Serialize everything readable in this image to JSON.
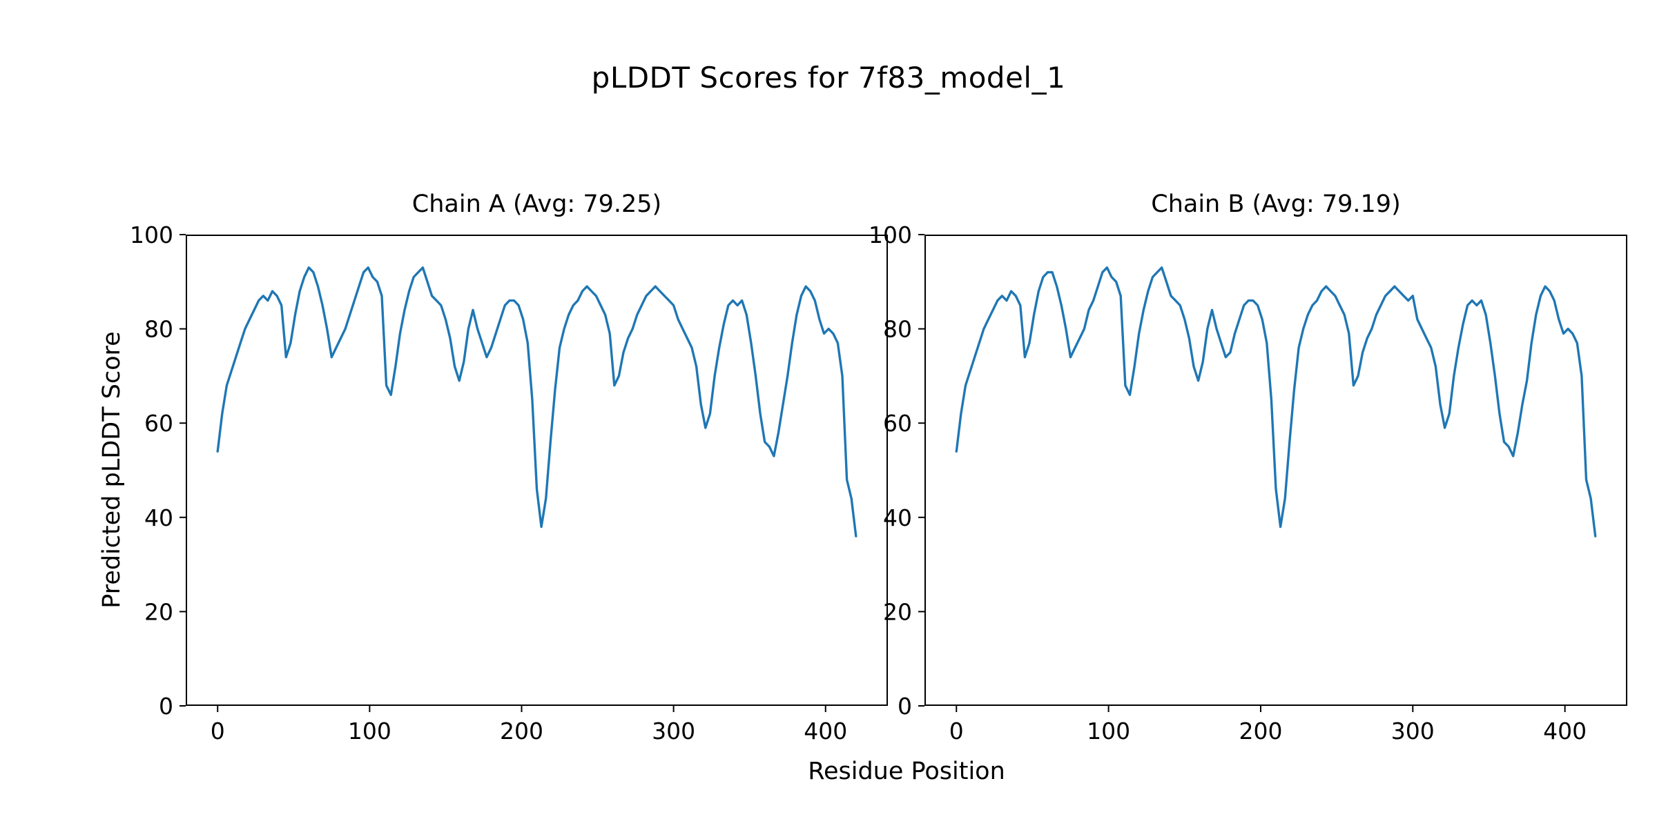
{
  "figure": {
    "title": "pLDDT Scores for 7f83_model_1",
    "xlabel": "Residue Position",
    "ylabel": "Predicted pLDDT Score"
  },
  "chart_data": {
    "type": "line",
    "title": "pLDDT Scores for 7f83_model_1",
    "xlabel": "Residue Position",
    "ylabel": "Predicted pLDDT Score",
    "grid": false,
    "legend": null,
    "line_color": "#1f77b4",
    "frame_color": "#000000",
    "xlim": [
      -21,
      441
    ],
    "ylim": [
      0,
      100
    ],
    "xticks": [
      0,
      100,
      200,
      300,
      400
    ],
    "yticks": [
      0,
      20,
      40,
      60,
      80,
      100
    ],
    "x_start": 0,
    "x_step": 3,
    "subplots": [
      {
        "name": "Chain A",
        "avg": 79.25,
        "title": "Chain A (Avg: 79.25)",
        "values": [
          54,
          62,
          68,
          71,
          74,
          77,
          80,
          82,
          84,
          86,
          87,
          86,
          88,
          87,
          85,
          74,
          77,
          83,
          88,
          91,
          93,
          92,
          89,
          85,
          80,
          74,
          76,
          78,
          80,
          83,
          86,
          89,
          92,
          93,
          91,
          90,
          87,
          68,
          66,
          72,
          79,
          84,
          88,
          91,
          92,
          93,
          90,
          87,
          86,
          85,
          82,
          78,
          72,
          69,
          73,
          80,
          84,
          80,
          77,
          74,
          76,
          79,
          82,
          85,
          86,
          86,
          85,
          82,
          77,
          65,
          46,
          38,
          44,
          56,
          67,
          76,
          80,
          83,
          85,
          86,
          88,
          89,
          88,
          87,
          85,
          83,
          79,
          68,
          70,
          75,
          78,
          80,
          83,
          85,
          87,
          88,
          89,
          88,
          87,
          86,
          85,
          82,
          80,
          78,
          76,
          72,
          64,
          59,
          62,
          70,
          76,
          81,
          85,
          86,
          85,
          86,
          83,
          77,
          70,
          62,
          56,
          55,
          53,
          58,
          64,
          70,
          77,
          83,
          87,
          89,
          88,
          86,
          82,
          79,
          80,
          79,
          77,
          70,
          48,
          44,
          36
        ]
      },
      {
        "name": "Chain B",
        "avg": 79.19,
        "title": "Chain B (Avg: 79.19)",
        "values": [
          54,
          62,
          68,
          71,
          74,
          77,
          80,
          82,
          84,
          86,
          87,
          86,
          88,
          87,
          85,
          74,
          77,
          83,
          88,
          91,
          92,
          92,
          89,
          85,
          80,
          74,
          76,
          78,
          80,
          84,
          86,
          89,
          92,
          93,
          91,
          90,
          87,
          68,
          66,
          72,
          79,
          84,
          88,
          91,
          92,
          93,
          90,
          87,
          86,
          85,
          82,
          78,
          72,
          69,
          73,
          80,
          84,
          80,
          77,
          74,
          75,
          79,
          82,
          85,
          86,
          86,
          85,
          82,
          77,
          65,
          46,
          38,
          44,
          56,
          67,
          76,
          80,
          83,
          85,
          86,
          88,
          89,
          88,
          87,
          85,
          83,
          79,
          68,
          70,
          75,
          78,
          80,
          83,
          85,
          87,
          88,
          89,
          88,
          87,
          86,
          87,
          82,
          80,
          78,
          76,
          72,
          64,
          59,
          62,
          70,
          76,
          81,
          85,
          86,
          85,
          86,
          83,
          77,
          70,
          62,
          56,
          55,
          53,
          58,
          64,
          69,
          77,
          83,
          87,
          89,
          88,
          86,
          82,
          79,
          80,
          79,
          77,
          70,
          48,
          44,
          36
        ]
      }
    ]
  }
}
